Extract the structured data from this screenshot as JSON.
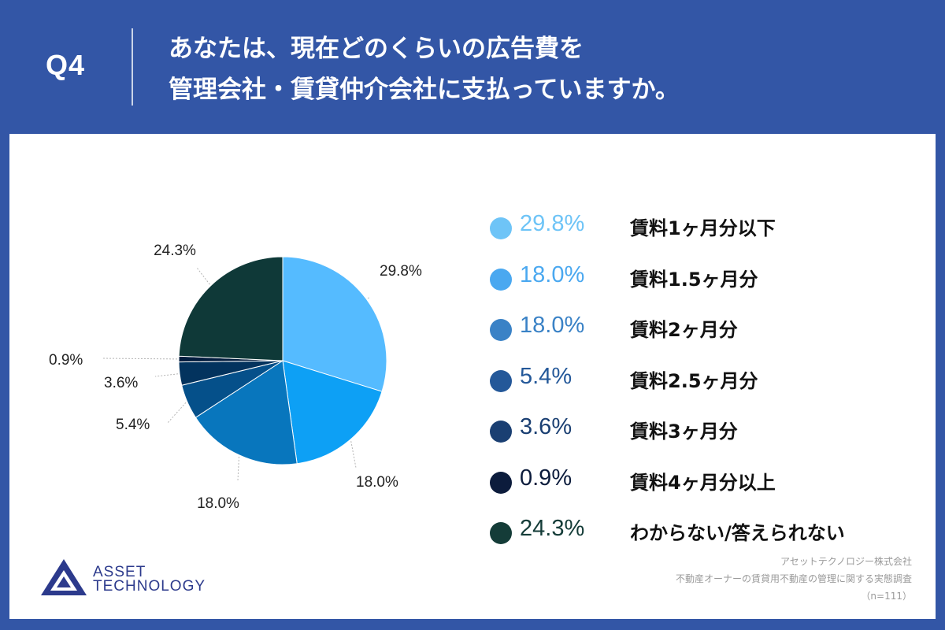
{
  "header": {
    "q_label": "Q4",
    "title_line1": "あなたは、現在どのくらいの広告費を",
    "title_line2": "管理会社・賃貸仲介会社に支払っていますか。"
  },
  "chart_data": {
    "type": "pie",
    "unit": "%",
    "slices": [
      {
        "label": "賃料1ヶ月分以下",
        "value": 29.8,
        "display": "29.8%",
        "color": "#55bbff"
      },
      {
        "label": "賃料1.5ヶ月分",
        "value": 18.0,
        "display": "18.0%",
        "color": "#0da0f5"
      },
      {
        "label": "賃料2ヶ月分",
        "value": 18.0,
        "display": "18.0%",
        "color": "#0876bd"
      },
      {
        "label": "賃料2.5ヶ月分",
        "value": 5.4,
        "display": "5.4%",
        "color": "#05508a"
      },
      {
        "label": "賃料3ヶ月分",
        "value": 3.6,
        "display": "3.6%",
        "color": "#03335e"
      },
      {
        "label": "賃料4ヶ月分以上",
        "value": 0.9,
        "display": "0.9%",
        "color": "#021c3e"
      },
      {
        "label": "わからない/答えられない",
        "value": 24.3,
        "display": "24.3%",
        "color": "#0f3938"
      }
    ]
  },
  "legend_colors": [
    "#6ec4f7",
    "#4aa8f0",
    "#3a82c6",
    "#245899",
    "#1a3f72",
    "#0c1c3c",
    "#143c38"
  ],
  "logo": {
    "line1": "ASSET",
    "line2": "TECHNOLOGY"
  },
  "source": {
    "line1": "アセットテクノロジー株式会社",
    "line2": "不動産オーナーの賃貸用不動産の管理に関する実態調査",
    "line3": "（n=111）"
  }
}
